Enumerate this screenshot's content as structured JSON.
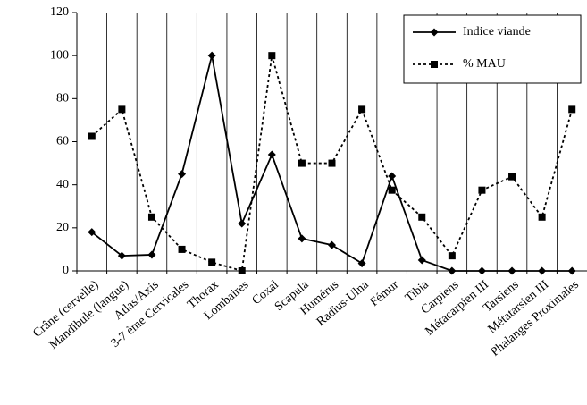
{
  "chart_data": {
    "type": "line",
    "categories": [
      "Crâne (cervelle)",
      "Mandibule (langue)",
      "Atlas/Axis",
      "3-7 ème Cervicales",
      "Thorax",
      "Lombaires",
      "Coxal",
      "Scapula",
      "Humérus",
      "Radius-Ulna",
      "Fémur",
      "Tibia",
      "Carpiens",
      "Métacarpien III",
      "Tarsiens",
      "Métatarsien III",
      "Phalanges Proximales"
    ],
    "series": [
      {
        "name": "Indice viande",
        "color": "#000000",
        "line_style": "solid",
        "marker": "diamond",
        "values": [
          18,
          7,
          7.5,
          45,
          100,
          22,
          54,
          15,
          12,
          3.5,
          44,
          5,
          0,
          0,
          0,
          0,
          0
        ]
      },
      {
        "name": "% MAU",
        "color": "#000000",
        "line_style": "dotted",
        "marker": "square",
        "values": [
          62.5,
          75,
          25,
          10,
          4,
          0,
          100,
          50,
          50,
          75,
          37.5,
          25,
          7,
          37.5,
          43.75,
          25,
          75
        ]
      }
    ],
    "ylim": [
      0,
      120
    ],
    "yticks": [
      0,
      20,
      40,
      60,
      80,
      100,
      120
    ],
    "legend": "top-right"
  }
}
